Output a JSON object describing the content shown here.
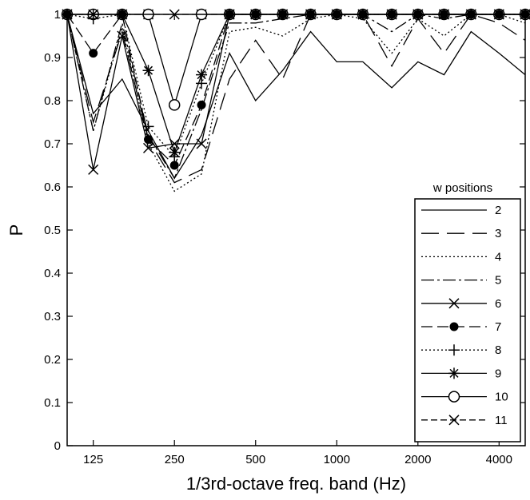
{
  "chart_data": {
    "type": "line",
    "title": "",
    "xlabel": "1/3rd-octave freq. band (Hz)",
    "ylabel": "P",
    "x": [
      100,
      125,
      160,
      200,
      250,
      315,
      400,
      500,
      630,
      800,
      1000,
      1250,
      1600,
      2000,
      2500,
      3150,
      4000,
      5000
    ],
    "xticks": [
      125,
      250,
      500,
      1000,
      2000,
      4000
    ],
    "xlim": [
      100,
      5000
    ],
    "xscale": "log",
    "ylim": [
      0,
      1
    ],
    "yticks": [
      0,
      0.1,
      0.2,
      0.3,
      0.4,
      0.5,
      0.6,
      0.7,
      0.8,
      0.9,
      1
    ],
    "grid": false,
    "legend": {
      "title": "w positions",
      "position": "right"
    },
    "series": [
      {
        "name": "2",
        "dash": "",
        "marker": "none",
        "values": [
          1.0,
          0.77,
          0.85,
          0.73,
          0.62,
          0.72,
          0.91,
          0.8,
          0.87,
          0.96,
          0.89,
          0.89,
          0.83,
          0.89,
          0.86,
          0.96,
          0.91,
          0.86
        ]
      },
      {
        "name": "3",
        "dash": "22 10",
        "marker": "none",
        "values": [
          1.0,
          0.75,
          0.96,
          0.71,
          0.61,
          0.64,
          0.85,
          0.94,
          0.85,
          1.0,
          1.0,
          1.0,
          0.88,
          0.99,
          0.91,
          1.0,
          0.98,
          0.94
        ]
      },
      {
        "name": "4",
        "dash": "2 3",
        "marker": "none",
        "values": [
          1.0,
          0.73,
          0.97,
          0.7,
          0.59,
          0.63,
          0.96,
          0.97,
          0.95,
          0.99,
          1.0,
          0.99,
          0.91,
          0.99,
          0.95,
          1.0,
          1.0,
          0.98
        ]
      },
      {
        "name": "5",
        "dash": "16 4 3 4",
        "marker": "none",
        "values": [
          1.0,
          0.73,
          0.98,
          0.72,
          0.62,
          0.78,
          0.98,
          0.98,
          0.99,
          1.0,
          1.0,
          1.0,
          0.96,
          1.0,
          0.99,
          1.0,
          1.0,
          1.0
        ]
      },
      {
        "name": "6",
        "dash": "",
        "marker": "x",
        "values": [
          1.0,
          0.64,
          0.95,
          0.69,
          0.7,
          0.7,
          1.0,
          1.0,
          1.0,
          1.0,
          1.0,
          1.0,
          1.0,
          1.0,
          1.0,
          1.0,
          1.0,
          1.0
        ]
      },
      {
        "name": "7",
        "dash": "14 6",
        "marker": "dot",
        "values": [
          1.0,
          0.91,
          1.0,
          0.71,
          0.65,
          0.79,
          1.0,
          1.0,
          1.0,
          1.0,
          1.0,
          1.0,
          1.0,
          1.0,
          1.0,
          1.0,
          1.0,
          1.0
        ]
      },
      {
        "name": "8",
        "dash": "2 3",
        "marker": "plus",
        "values": [
          1.0,
          0.99,
          1.0,
          0.74,
          0.67,
          0.84,
          1.0,
          1.0,
          1.0,
          1.0,
          1.0,
          1.0,
          1.0,
          1.0,
          1.0,
          1.0,
          1.0,
          1.0
        ]
      },
      {
        "name": "9",
        "dash": "",
        "marker": "star",
        "values": [
          1.0,
          1.0,
          1.0,
          0.87,
          0.68,
          0.86,
          1.0,
          1.0,
          1.0,
          1.0,
          1.0,
          1.0,
          1.0,
          1.0,
          1.0,
          1.0,
          1.0,
          1.0
        ]
      },
      {
        "name": "10",
        "dash": "",
        "marker": "circle",
        "values": [
          1.0,
          1.0,
          1.0,
          1.0,
          0.79,
          1.0,
          1.0,
          1.0,
          1.0,
          1.0,
          1.0,
          1.0,
          1.0,
          1.0,
          1.0,
          1.0,
          1.0,
          1.0
        ]
      },
      {
        "name": "11",
        "dash": "8 4",
        "marker": "x",
        "values": [
          1.0,
          1.0,
          1.0,
          1.0,
          1.0,
          1.0,
          1.0,
          1.0,
          1.0,
          1.0,
          1.0,
          1.0,
          1.0,
          1.0,
          1.0,
          1.0,
          1.0,
          1.0
        ]
      }
    ]
  }
}
